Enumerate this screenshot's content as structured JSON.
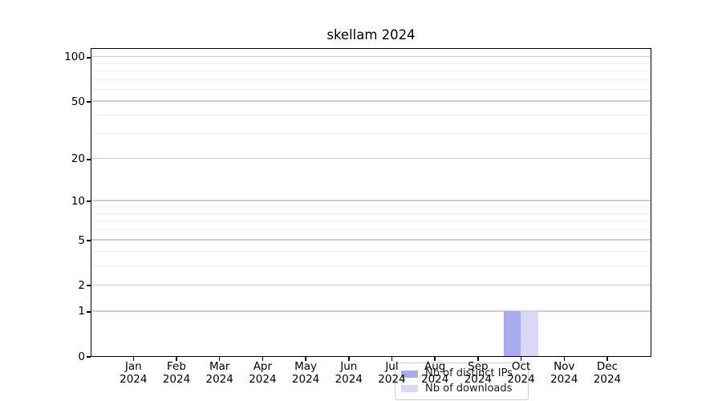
{
  "title": "skellam 2024",
  "colors": {
    "bar_distinct_ips": "#aaaaf0",
    "bar_downloads": "#d9d9f7",
    "grid_major": "#cdcdcd",
    "grid_minor": "#ededed",
    "spine": "#000000",
    "background": "#ffffff",
    "text": "#000000"
  },
  "y_axis": {
    "scale": "log1p",
    "max": 115.9,
    "major_ticks": [
      0,
      1,
      2,
      5,
      10,
      20,
      50,
      100
    ],
    "minor_gridlines": [
      3,
      4,
      6,
      7,
      8,
      9,
      30,
      40,
      60,
      70,
      80,
      90
    ]
  },
  "x_axis": {
    "months": [
      "Jan",
      "Feb",
      "Mar",
      "Apr",
      "May",
      "Jun",
      "Jul",
      "Aug",
      "Sep",
      "Oct",
      "Nov",
      "Dec"
    ],
    "year": "2024"
  },
  "legend": {
    "items": [
      {
        "label": "Nb of distinct IPs",
        "color_key": "bar_distinct_ips"
      },
      {
        "label": "Nb of downloads",
        "color_key": "bar_downloads"
      }
    ]
  },
  "chart_data": {
    "type": "bar",
    "title": "skellam 2024",
    "categories": [
      "Jan 2024",
      "Feb 2024",
      "Mar 2024",
      "Apr 2024",
      "May 2024",
      "Jun 2024",
      "Jul 2024",
      "Aug 2024",
      "Sep 2024",
      "Oct 2024",
      "Nov 2024",
      "Dec 2024"
    ],
    "series": [
      {
        "name": "Nb of distinct IPs",
        "color": "#aaaaf0",
        "values": [
          0,
          0,
          0,
          0,
          0,
          0,
          0,
          0,
          0,
          1,
          0,
          0
        ]
      },
      {
        "name": "Nb of downloads",
        "color": "#d9d9f7",
        "values": [
          0,
          0,
          0,
          0,
          0,
          0,
          0,
          0,
          0,
          1,
          0,
          0
        ]
      }
    ],
    "xlabel": "",
    "ylabel": "",
    "yscale": "log1p",
    "yticks": [
      0,
      1,
      2,
      5,
      10,
      20,
      50,
      100
    ],
    "ylim": [
      0,
      115.9
    ],
    "grid": "horizontal major and minor gridlines",
    "legend_position": "lower center inside plot"
  }
}
